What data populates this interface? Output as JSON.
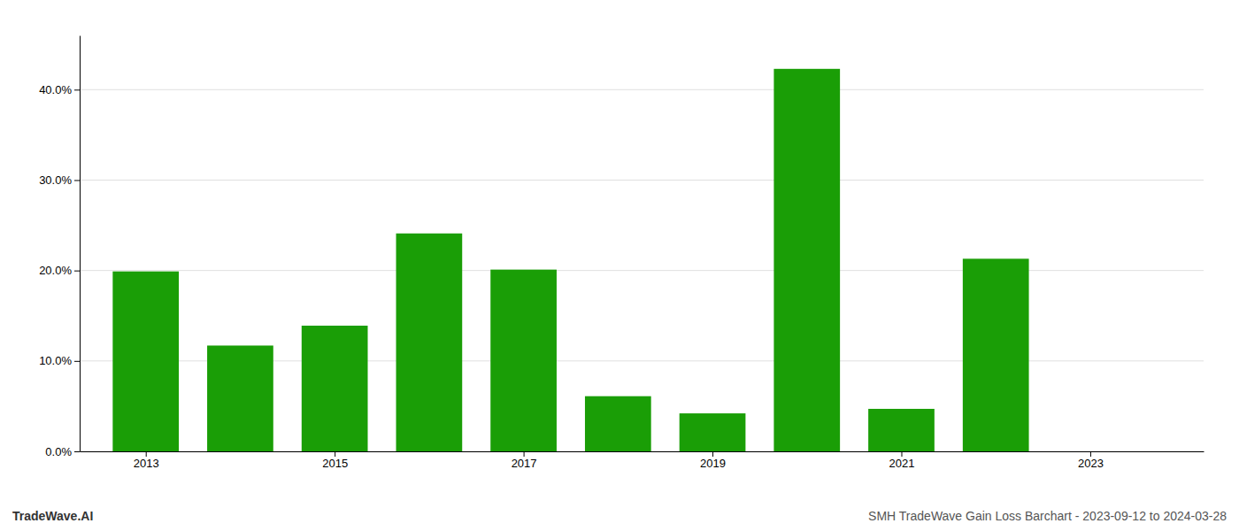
{
  "chart_data": {
    "type": "bar",
    "title": "SMH TradeWave Gain Loss Barchart - 2023-09-12 to 2024-03-28",
    "annotations": [
      "TradeWave.AI"
    ],
    "x": [
      2013,
      2014,
      2015,
      2016,
      2017,
      2018,
      2019,
      2020,
      2021,
      2022,
      2023
    ],
    "values": [
      0.199,
      0.117,
      0.139,
      0.241,
      0.201,
      0.061,
      0.042,
      0.423,
      0.047,
      0.213,
      0.0
    ],
    "color": "#1a9e06",
    "xlim": [
      2012.3,
      2024.2
    ],
    "xticks": [
      2013,
      2015,
      2017,
      2019,
      2021,
      2023
    ],
    "ylim": [
      0,
      0.46
    ],
    "yticks": [
      {
        "value": 0.0,
        "label": "0.0%"
      },
      {
        "value": 0.1,
        "label": "10.0%"
      },
      {
        "value": 0.2,
        "label": "20.0%"
      },
      {
        "value": 0.3,
        "label": "30.0%"
      },
      {
        "value": 0.4,
        "label": "40.0%"
      }
    ],
    "grid": true
  }
}
